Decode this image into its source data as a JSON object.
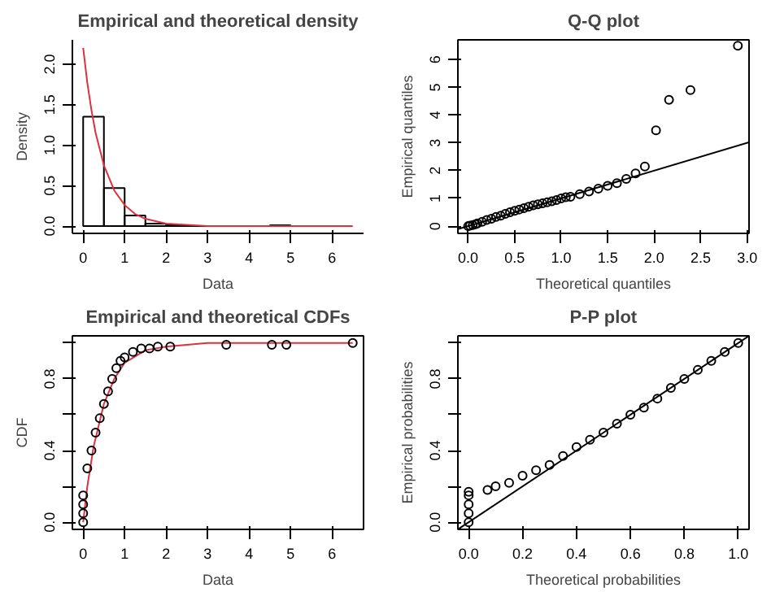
{
  "chart_data": [
    {
      "type": "histogram",
      "title": "Empirical and theoretical density",
      "xlabel": "Data",
      "ylabel": "Density",
      "xlim": [
        -0.26,
        6.76
      ],
      "ylim": [
        -0.09,
        2.3
      ],
      "xticks": [
        0,
        1,
        2,
        3,
        4,
        5,
        6
      ],
      "yticks": [
        {
          "value": 0,
          "label": "0.0"
        },
        {
          "value": 0.5,
          "label": "0.5"
        },
        {
          "value": 1,
          "label": "1.0"
        },
        {
          "value": 1.5,
          "label": "1.5"
        },
        {
          "value": 2,
          "label": "2.0"
        }
      ],
      "series": [
        {
          "type": "histogram",
          "color": "#000000",
          "bins": [
            0,
            0.5,
            1,
            1.5,
            2,
            2.5,
            3,
            3.5,
            4,
            4.5,
            5
          ],
          "values": [
            1.35,
            0.47,
            0.13,
            0.03,
            0.01,
            0,
            0,
            0,
            0,
            0.01
          ]
        },
        {
          "type": "line",
          "color": "#dd3040",
          "x": [
            0,
            0.1,
            0.2,
            0.3,
            0.5,
            0.75,
            1,
            1.25,
            1.5,
            2,
            3,
            4,
            5,
            6.5
          ],
          "values": [
            2.2,
            1.77,
            1.43,
            1.15,
            0.75,
            0.44,
            0.26,
            0.15,
            0.09,
            0.03,
            0,
            0,
            0,
            0
          ]
        }
      ]
    },
    {
      "type": "scatter",
      "title": "Q-Q plot",
      "xlabel": "Theoretical quantiles",
      "ylabel": "Empirical quantiles",
      "xlim": [
        -0.11,
        3.02
      ],
      "ylim": [
        -0.26,
        6.71
      ],
      "xticks": [
        {
          "value": 0,
          "label": "0.0"
        },
        {
          "value": 0.5,
          "label": "0.5"
        },
        {
          "value": 1,
          "label": "1.0"
        },
        {
          "value": 1.5,
          "label": "1.5"
        },
        {
          "value": 2,
          "label": "2.0"
        },
        {
          "value": 2.5,
          "label": "2.5"
        },
        {
          "value": 3,
          "label": "3.0"
        }
      ],
      "yticks": [
        0,
        1,
        2,
        3,
        4,
        5,
        6
      ],
      "series": [
        {
          "type": "scatter",
          "marker": "circle",
          "color": "#000000",
          "x": [
            0,
            0.02,
            0.05,
            0.08,
            0.1,
            0.15,
            0.2,
            0.25,
            0.3,
            0.35,
            0.4,
            0.45,
            0.5,
            0.55,
            0.6,
            0.65,
            0.7,
            0.75,
            0.8,
            0.85,
            0.9,
            0.95,
            1.0,
            1.05,
            1.1,
            1.2,
            1.3,
            1.4,
            1.5,
            1.6,
            1.7,
            1.8,
            1.9,
            2.02,
            2.16,
            2.39,
            2.9
          ],
          "values": [
            0,
            0.02,
            0.04,
            0.07,
            0.1,
            0.16,
            0.22,
            0.27,
            0.33,
            0.38,
            0.44,
            0.5,
            0.55,
            0.6,
            0.65,
            0.7,
            0.75,
            0.79,
            0.82,
            0.86,
            0.9,
            0.94,
            1.0,
            1.04,
            1.06,
            1.15,
            1.25,
            1.35,
            1.45,
            1.55,
            1.7,
            1.9,
            2.15,
            3.45,
            4.55,
            4.9,
            6.5
          ]
        },
        {
          "type": "line",
          "color": "#000000",
          "x": [
            -0.11,
            3.02
          ],
          "values": [
            -0.11,
            3.02
          ]
        }
      ]
    },
    {
      "type": "scatter",
      "title": "Empirical and theoretical CDFs",
      "xlabel": "Data",
      "ylabel": "CDF",
      "xlim": [
        -0.26,
        6.76
      ],
      "ylim": [
        -0.04,
        1.04
      ],
      "xticks": [
        0,
        1,
        2,
        3,
        4,
        5,
        6
      ],
      "yticks": [
        {
          "value": 0,
          "label": "0.0"
        },
        {
          "value": 0.2,
          "label": null
        },
        {
          "value": 0.4,
          "label": "0.4"
        },
        {
          "value": 0.6,
          "label": null
        },
        {
          "value": 0.8,
          "label": "0.8"
        },
        {
          "value": 1,
          "label": null
        }
      ],
      "series": [
        {
          "type": "line",
          "color": "#dd3040",
          "x": [
            0,
            0.1,
            0.25,
            0.5,
            0.75,
            1,
            1.5,
            2,
            3,
            6.5
          ],
          "values": [
            0,
            0.2,
            0.42,
            0.66,
            0.8,
            0.89,
            0.96,
            0.98,
            1,
            1
          ]
        },
        {
          "type": "scatter",
          "marker": "circle",
          "color": "#000000",
          "x": [
            0,
            0,
            0,
            0,
            0.1,
            0.2,
            0.3,
            0.4,
            0.5,
            0.6,
            0.7,
            0.8,
            0.9,
            1.0,
            1.2,
            1.4,
            1.6,
            1.8,
            2.1,
            3.45,
            4.55,
            4.9,
            6.5
          ],
          "values": [
            0,
            0.05,
            0.1,
            0.15,
            0.3,
            0.4,
            0.5,
            0.58,
            0.66,
            0.73,
            0.8,
            0.86,
            0.9,
            0.92,
            0.95,
            0.97,
            0.97,
            0.98,
            0.98,
            0.99,
            0.99,
            0.99,
            1.0
          ]
        }
      ]
    },
    {
      "type": "scatter",
      "title": "P-P plot",
      "xlabel": "Theoretical probabilities",
      "ylabel": "Empirical probabilities",
      "xlim": [
        -0.04,
        1.04
      ],
      "ylim": [
        -0.04,
        1.04
      ],
      "xticks": [
        {
          "value": 0,
          "label": "0.0"
        },
        {
          "value": 0.2,
          "label": "0.2"
        },
        {
          "value": 0.4,
          "label": "0.4"
        },
        {
          "value": 0.6,
          "label": "0.6"
        },
        {
          "value": 0.8,
          "label": "0.8"
        },
        {
          "value": 1,
          "label": "1.0"
        }
      ],
      "yticks": [
        {
          "value": 0,
          "label": "0.0"
        },
        {
          "value": 0.2,
          "label": null
        },
        {
          "value": 0.4,
          "label": "0.4"
        },
        {
          "value": 0.6,
          "label": null
        },
        {
          "value": 0.8,
          "label": "0.8"
        },
        {
          "value": 1,
          "label": null
        }
      ],
      "series": [
        {
          "type": "scatter",
          "marker": "circle",
          "color": "#000000",
          "x": [
            0,
            0,
            0,
            0,
            0,
            0.07,
            0.1,
            0.15,
            0.2,
            0.25,
            0.3,
            0.35,
            0.4,
            0.45,
            0.5,
            0.55,
            0.6,
            0.65,
            0.7,
            0.75,
            0.8,
            0.85,
            0.9,
            0.95,
            1.0
          ],
          "values": [
            0,
            0.05,
            0.1,
            0.15,
            0.17,
            0.18,
            0.2,
            0.22,
            0.26,
            0.29,
            0.32,
            0.37,
            0.42,
            0.46,
            0.5,
            0.55,
            0.6,
            0.64,
            0.69,
            0.75,
            0.8,
            0.85,
            0.9,
            0.95,
            1.0
          ]
        },
        {
          "type": "line",
          "color": "#000000",
          "x": [
            -0.04,
            1.04
          ],
          "values": [
            -0.04,
            1.04
          ]
        }
      ]
    }
  ]
}
